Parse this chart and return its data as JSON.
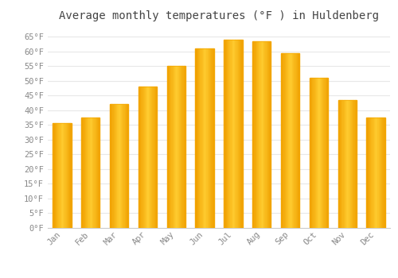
{
  "title": "Average monthly temperatures (°F ) in Huldenberg",
  "months": [
    "Jan",
    "Feb",
    "Mar",
    "Apr",
    "May",
    "Jun",
    "Jul",
    "Aug",
    "Sep",
    "Oct",
    "Nov",
    "Dec"
  ],
  "values": [
    35.5,
    37.5,
    42.0,
    48.0,
    55.0,
    61.0,
    64.0,
    63.5,
    59.5,
    51.0,
    43.5,
    37.5
  ],
  "bar_color_face": "#FFBB22",
  "bar_color_edge": "#F5A800",
  "ylim": [
    0,
    68
  ],
  "yticks": [
    0,
    5,
    10,
    15,
    20,
    25,
    30,
    35,
    40,
    45,
    50,
    55,
    60,
    65
  ],
  "background_color": "#FFFFFF",
  "grid_color": "#E8E8E8",
  "title_fontsize": 10,
  "tick_fontsize": 7.5,
  "tick_label_color": "#888888",
  "title_color": "#444444",
  "font_family": "monospace"
}
